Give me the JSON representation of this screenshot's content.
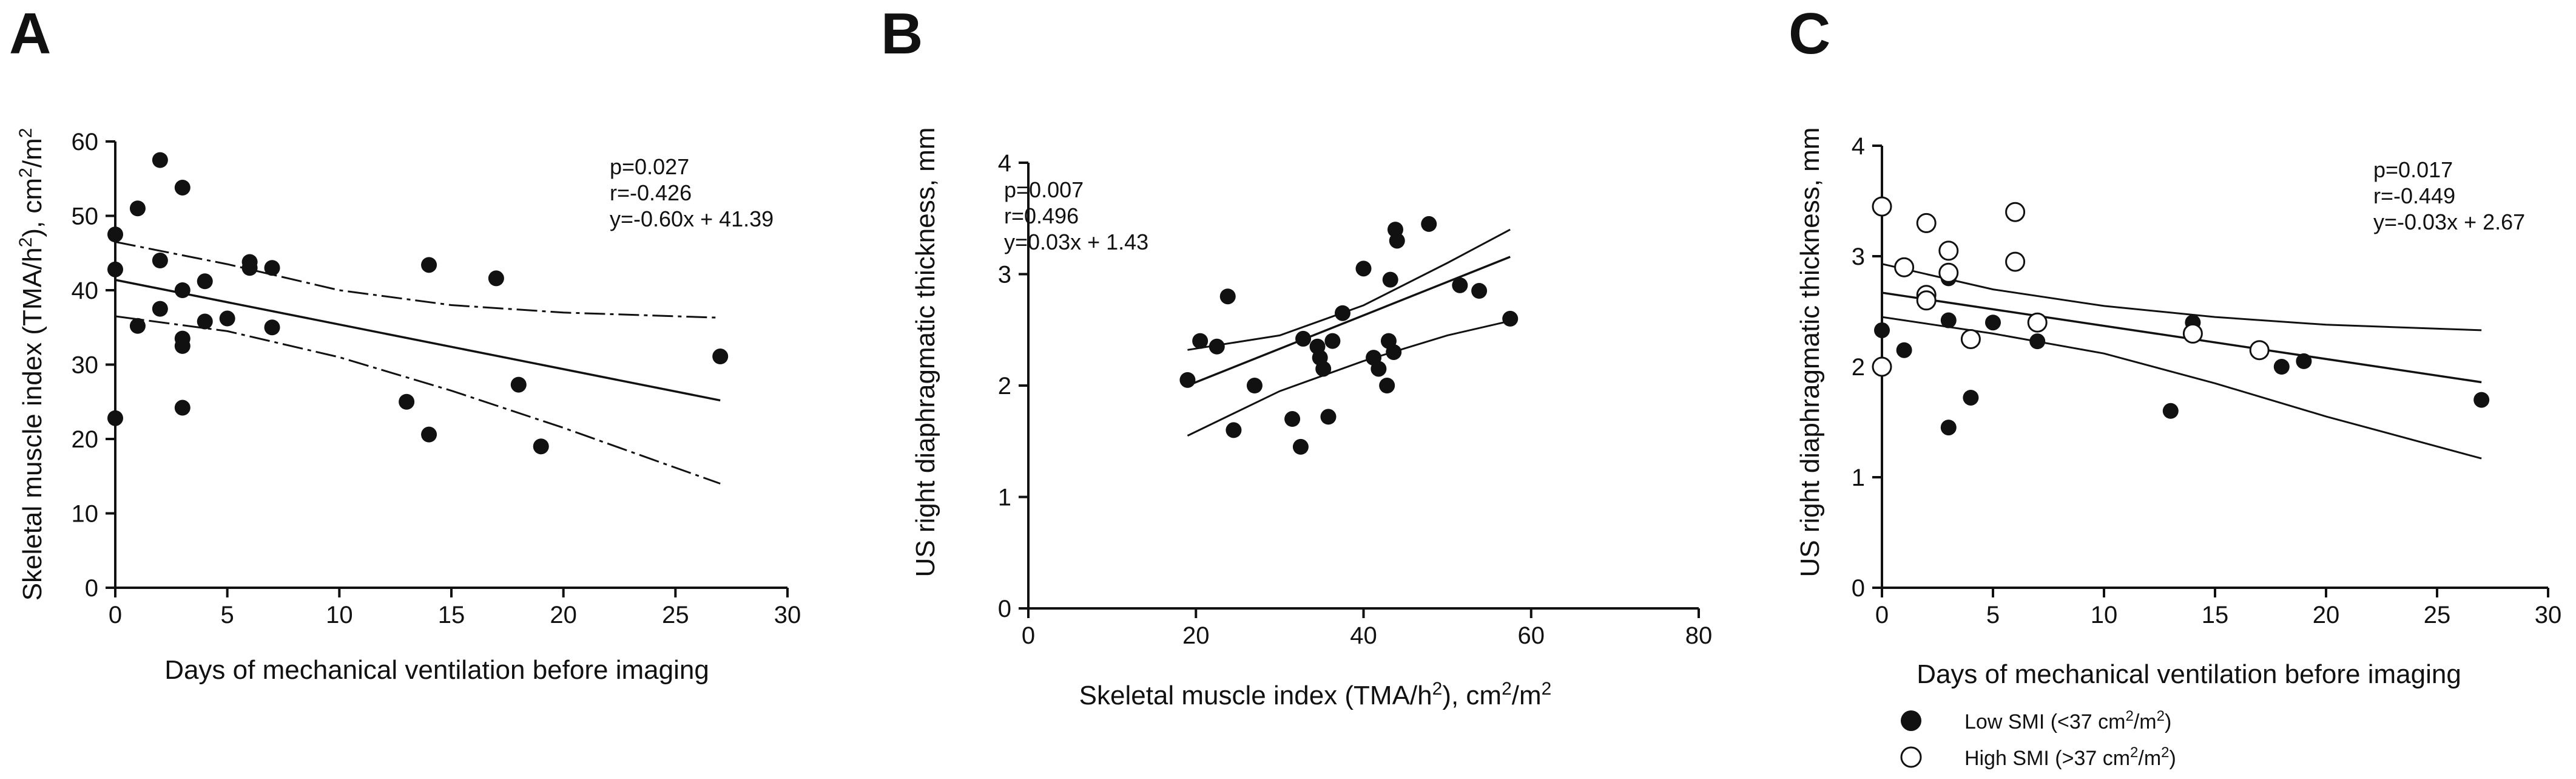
{
  "chart_data": [
    {
      "panel": "A",
      "type": "scatter",
      "xlabel": "Days of mechanical ventilation before imaging",
      "ylabel_main": "Skeletal muscle index (TMA/h",
      "ylabel_sup1": "2",
      "ylabel_mid": "), cm",
      "ylabel_sup2": "2",
      "ylabel_mid2": "/m",
      "ylabel_sup3": "2",
      "xlim": [
        0,
        30
      ],
      "ylim": [
        0,
        60
      ],
      "xticks": [
        0,
        5,
        10,
        15,
        20,
        25,
        30
      ],
      "yticks": [
        0,
        10,
        20,
        30,
        40,
        50,
        60
      ],
      "points": [
        {
          "x": 0,
          "y": 47.5
        },
        {
          "x": 0,
          "y": 42.8
        },
        {
          "x": 0,
          "y": 22.8
        },
        {
          "x": 1,
          "y": 51.0
        },
        {
          "x": 1,
          "y": 35.2
        },
        {
          "x": 2,
          "y": 57.5
        },
        {
          "x": 2,
          "y": 44.0
        },
        {
          "x": 2,
          "y": 37.5
        },
        {
          "x": 3,
          "y": 53.8
        },
        {
          "x": 3,
          "y": 40.0
        },
        {
          "x": 3,
          "y": 33.5
        },
        {
          "x": 3,
          "y": 32.5
        },
        {
          "x": 3,
          "y": 24.2
        },
        {
          "x": 4,
          "y": 41.2
        },
        {
          "x": 4,
          "y": 35.8
        },
        {
          "x": 5,
          "y": 36.2
        },
        {
          "x": 6,
          "y": 43.8
        },
        {
          "x": 6,
          "y": 43.0
        },
        {
          "x": 7,
          "y": 43.0
        },
        {
          "x": 7,
          "y": 35.0
        },
        {
          "x": 13,
          "y": 25.0
        },
        {
          "x": 14,
          "y": 43.4
        },
        {
          "x": 14,
          "y": 20.6
        },
        {
          "x": 17,
          "y": 41.6
        },
        {
          "x": 18,
          "y": 27.3
        },
        {
          "x": 19,
          "y": 19.0
        },
        {
          "x": 27,
          "y": 31.1
        }
      ],
      "fit": {
        "slope": -0.6,
        "intercept": 41.39,
        "ci_lower_curve": [
          [
            0,
            36.5
          ],
          [
            5,
            34.5
          ],
          [
            10,
            31.0
          ],
          [
            15,
            26.5
          ],
          [
            20,
            21.5
          ],
          [
            27,
            14.0
          ]
        ],
        "ci_upper_curve": [
          [
            0,
            46.5
          ],
          [
            5,
            43.5
          ],
          [
            10,
            40.0
          ],
          [
            15,
            38.0
          ],
          [
            20,
            37.0
          ],
          [
            27,
            36.3
          ]
        ]
      },
      "annotations": [
        "p=0.027",
        "r=-0.426",
        "y=-0.60x + 41.39"
      ]
    },
    {
      "panel": "B",
      "type": "scatter",
      "xlabel_main": "Skeletal muscle index (TMA/h",
      "xlabel_sup1": "2",
      "xlabel_mid": "), cm",
      "xlabel_sup2": "2",
      "xlabel_mid2": "/m",
      "xlabel_sup3": "2",
      "ylabel": "US right diaphragmatic thickness, mm",
      "xlim": [
        0,
        80
      ],
      "ylim": [
        0,
        4
      ],
      "xticks": [
        0,
        20,
        40,
        60,
        80
      ],
      "yticks": [
        0,
        1,
        2,
        3,
        4
      ],
      "points": [
        {
          "x": 19,
          "y": 2.05
        },
        {
          "x": 20.5,
          "y": 2.4
        },
        {
          "x": 22.5,
          "y": 2.35
        },
        {
          "x": 23.8,
          "y": 2.8
        },
        {
          "x": 24.5,
          "y": 1.6
        },
        {
          "x": 27,
          "y": 2.0
        },
        {
          "x": 31.5,
          "y": 1.7
        },
        {
          "x": 32.5,
          "y": 1.45
        },
        {
          "x": 32.8,
          "y": 2.42
        },
        {
          "x": 34.5,
          "y": 2.35
        },
        {
          "x": 34.8,
          "y": 2.25
        },
        {
          "x": 35.2,
          "y": 2.15
        },
        {
          "x": 35.8,
          "y": 1.72
        },
        {
          "x": 36.3,
          "y": 2.4
        },
        {
          "x": 37.5,
          "y": 2.65
        },
        {
          "x": 40,
          "y": 3.05
        },
        {
          "x": 41.2,
          "y": 2.25
        },
        {
          "x": 41.8,
          "y": 2.15
        },
        {
          "x": 42.8,
          "y": 2.0
        },
        {
          "x": 43.0,
          "y": 2.4
        },
        {
          "x": 43.2,
          "y": 2.95
        },
        {
          "x": 43.6,
          "y": 2.3
        },
        {
          "x": 43.8,
          "y": 3.4
        },
        {
          "x": 44.0,
          "y": 3.3
        },
        {
          "x": 47.8,
          "y": 3.45
        },
        {
          "x": 51.5,
          "y": 2.9
        },
        {
          "x": 53.8,
          "y": 2.85
        },
        {
          "x": 57.5,
          "y": 2.6
        }
      ],
      "fit": {
        "slope": 0.03,
        "intercept": 1.43,
        "x_range": [
          19,
          57.5
        ],
        "ci_lower_curve": [
          [
            19,
            1.55
          ],
          [
            30,
            1.95
          ],
          [
            40,
            2.22
          ],
          [
            50,
            2.45
          ],
          [
            57.5,
            2.58
          ]
        ],
        "ci_upper_curve": [
          [
            19,
            2.32
          ],
          [
            30,
            2.45
          ],
          [
            40,
            2.72
          ],
          [
            50,
            3.1
          ],
          [
            57.5,
            3.4
          ]
        ]
      },
      "annotations": [
        "p=0.007",
        "r=0.496",
        "y=0.03x + 1.43"
      ]
    },
    {
      "panel": "C",
      "type": "scatter",
      "xlabel": "Days of mechanical ventilation before imaging",
      "ylabel": "US right diaphragmatic thickness, mm",
      "xlim": [
        0,
        30
      ],
      "ylim": [
        0,
        4
      ],
      "xticks": [
        0,
        5,
        10,
        15,
        20,
        25,
        30
      ],
      "yticks": [
        0,
        1,
        2,
        3,
        4
      ],
      "series": [
        {
          "name": "Low SMI",
          "legend_main": "Low SMI (<37 cm",
          "legend_sup1": "2",
          "legend_mid": "/m",
          "legend_sup2": "2",
          "legend_end": ")",
          "marker": "filled",
          "points": [
            {
              "x": 0,
              "y": 2.33
            },
            {
              "x": 1,
              "y": 2.15
            },
            {
              "x": 3,
              "y": 2.8
            },
            {
              "x": 3,
              "y": 2.42
            },
            {
              "x": 3,
              "y": 1.45
            },
            {
              "x": 4,
              "y": 1.72
            },
            {
              "x": 5,
              "y": 2.4
            },
            {
              "x": 7,
              "y": 2.23
            },
            {
              "x": 13,
              "y": 1.6
            },
            {
              "x": 14,
              "y": 2.4
            },
            {
              "x": 18,
              "y": 2.0
            },
            {
              "x": 19,
              "y": 2.05
            },
            {
              "x": 27,
              "y": 1.7
            }
          ]
        },
        {
          "name": "High SMI",
          "legend_main": "High SMI (>37 cm",
          "legend_sup1": "2",
          "legend_mid": "/m",
          "legend_sup2": "2",
          "legend_end": ")",
          "marker": "open",
          "points": [
            {
              "x": 0,
              "y": 3.45
            },
            {
              "x": 0,
              "y": 2.0
            },
            {
              "x": 1,
              "y": 2.9
            },
            {
              "x": 2,
              "y": 3.3
            },
            {
              "x": 2,
              "y": 2.65
            },
            {
              "x": 2,
              "y": 2.6
            },
            {
              "x": 3,
              "y": 3.05
            },
            {
              "x": 3,
              "y": 2.85
            },
            {
              "x": 4,
              "y": 2.25
            },
            {
              "x": 6,
              "y": 3.4
            },
            {
              "x": 6,
              "y": 2.95
            },
            {
              "x": 7,
              "y": 2.4
            },
            {
              "x": 14,
              "y": 2.3
            },
            {
              "x": 17,
              "y": 2.15
            }
          ]
        }
      ],
      "fit": {
        "slope": -0.03,
        "intercept": 2.67,
        "ci_lower_curve": [
          [
            0,
            2.45
          ],
          [
            5,
            2.3
          ],
          [
            10,
            2.12
          ],
          [
            15,
            1.85
          ],
          [
            20,
            1.55
          ],
          [
            27,
            1.17
          ]
        ],
        "ci_upper_curve": [
          [
            0,
            2.93
          ],
          [
            5,
            2.7
          ],
          [
            10,
            2.55
          ],
          [
            15,
            2.45
          ],
          [
            20,
            2.38
          ],
          [
            27,
            2.33
          ]
        ]
      },
      "annotations": [
        "p=0.017",
        "r=-0.449",
        "y=-0.03x + 2.67"
      ]
    }
  ]
}
